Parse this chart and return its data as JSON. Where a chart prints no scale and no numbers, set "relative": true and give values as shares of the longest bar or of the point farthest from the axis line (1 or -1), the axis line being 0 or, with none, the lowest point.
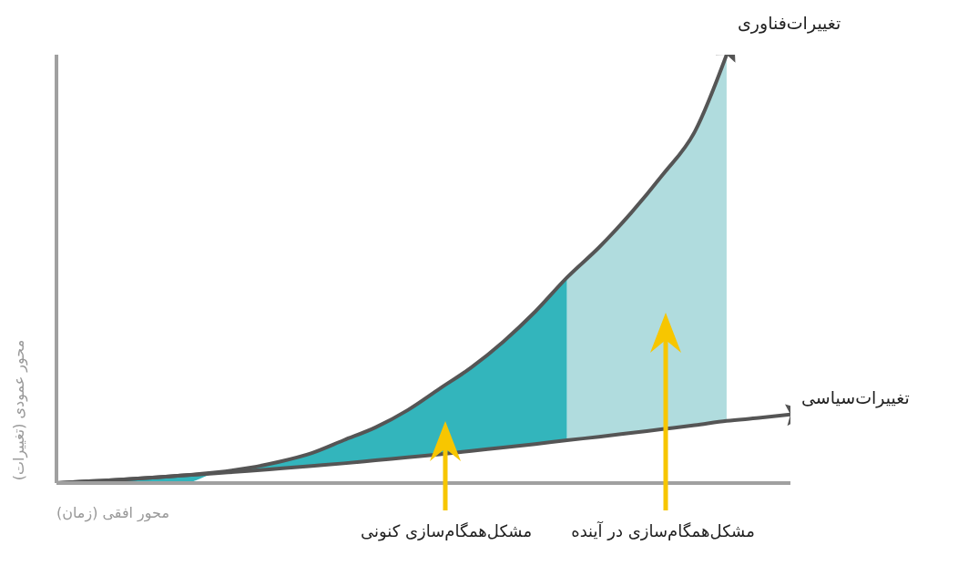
{
  "chart_data": {
    "type": "line",
    "relative": true,
    "xlabel": "محور افقی (زمان)",
    "ylabel": "محور عمودی (تغییرات)",
    "categories": [
      null,
      null,
      null,
      null,
      null,
      null,
      null,
      null,
      null,
      null,
      null,
      null,
      null,
      null,
      null,
      null,
      null,
      null,
      null,
      null,
      null,
      null,
      null,
      null
    ],
    "series": [
      {
        "name": "تغییرات‌فناوری",
        "color": "#555555",
        "values": [
          0,
          0.004,
          0.008,
          0.013,
          0.018,
          0.025,
          0.035,
          0.05,
          0.07,
          0.1,
          0.13,
          0.17,
          0.22,
          0.27,
          0.33,
          0.4,
          0.48,
          0.55,
          0.63,
          0.72,
          0.82,
          1.0,
          null,
          null
        ]
      },
      {
        "name": "تغییرات‌سیاسی",
        "color": "#555555",
        "values": [
          0,
          0.004,
          0.008,
          0.013,
          0.018,
          0.023,
          0.028,
          0.034,
          0.04,
          0.046,
          0.053,
          0.06,
          0.067,
          0.075,
          0.083,
          0.091,
          0.1,
          0.108,
          0.117,
          0.126,
          0.135,
          0.145,
          0.152,
          0.16
        ]
      },
      {
        "type": "area",
        "color": "#33b5bc",
        "values": [
          0,
          0.004,
          0.008,
          0.013,
          0.018,
          0.025,
          0.035,
          0.05,
          0.07,
          0.1,
          0.13,
          0.17,
          0.22,
          0.27,
          0.33,
          0.4,
          0.48,
          null,
          null,
          null,
          null,
          null,
          null,
          null
        ]
      },
      {
        "type": "area",
        "color": "#b0dcde",
        "values": [
          null,
          null,
          null,
          null,
          null,
          null,
          null,
          null,
          null,
          null,
          null,
          null,
          null,
          null,
          null,
          null,
          0.48,
          0.55,
          0.63,
          0.72,
          0.82,
          1.0,
          null,
          null
        ]
      }
    ],
    "annotations": [
      "مشکل‌همگام‌سازی کنونی",
      "مشکل‌همگام‌سازی در آینده"
    ],
    "grid": false,
    "legend": false,
    "marker": "none"
  }
}
